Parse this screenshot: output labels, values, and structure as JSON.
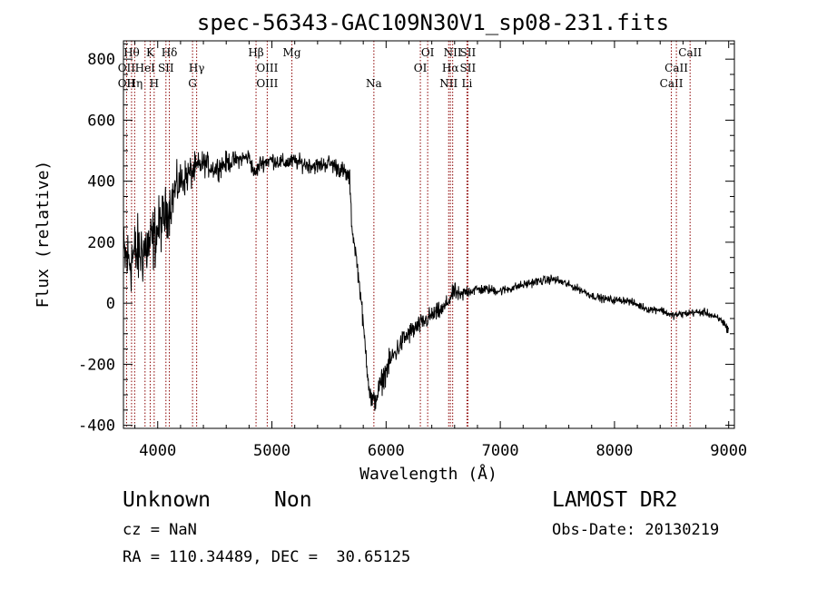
{
  "chart_data": {
    "type": "line",
    "title": "spec-56343-GAC109N30V1_sp08-231.fits",
    "xlabel": "Wavelength (Å)",
    "ylabel": "Flux (relative)",
    "xlim": [
      3700,
      9050
    ],
    "ylim": [
      -410,
      860
    ],
    "xticks": [
      4000,
      5000,
      6000,
      7000,
      8000,
      9000
    ],
    "yticks": [
      -400,
      -200,
      0,
      200,
      400,
      600,
      800
    ],
    "grid": false,
    "series": [
      {
        "x": [
          3700,
          3750,
          3800,
          3850,
          3900,
          3950,
          4000,
          4050,
          4100,
          4150,
          4200,
          4300,
          4400,
          4500,
          4600,
          4700,
          4800,
          4850,
          4900,
          5000,
          5100,
          5200,
          5300,
          5400,
          5500,
          5600,
          5680,
          5700,
          5720,
          5740,
          5760,
          5780,
          5800,
          5820,
          5840,
          5860,
          5880,
          5900,
          5950,
          6000,
          6050,
          6100,
          6150,
          6200,
          6300,
          6400,
          6500,
          6550,
          6600,
          6650,
          6700,
          6800,
          6900,
          7000,
          7100,
          7200,
          7300,
          7400,
          7450,
          7500,
          7600,
          7700,
          7800,
          7900,
          8000,
          8100,
          8200,
          8300,
          8400,
          8500,
          8600,
          8700,
          8800,
          8900,
          8950,
          9000
        ],
        "values": [
          150,
          140,
          160,
          170,
          180,
          200,
          240,
          280,
          310,
          370,
          400,
          430,
          460,
          440,
          460,
          470,
          480,
          420,
          460,
          470,
          460,
          465,
          455,
          450,
          460,
          440,
          410,
          250,
          200,
          150,
          80,
          20,
          -80,
          -150,
          -230,
          -300,
          -330,
          -320,
          -270,
          -220,
          -180,
          -150,
          -120,
          -100,
          -70,
          -40,
          -20,
          10,
          40,
          20,
          40,
          45,
          45,
          40,
          50,
          60,
          70,
          75,
          80,
          75,
          60,
          45,
          25,
          15,
          10,
          10,
          -5,
          -20,
          -20,
          -40,
          -35,
          -30,
          -30,
          -50,
          -60,
          -90
        ],
        "noise": [
          130,
          130,
          130,
          130,
          130,
          120,
          110,
          100,
          90,
          80,
          70,
          60,
          45,
          40,
          40,
          30,
          30,
          30,
          30,
          30,
          30,
          30,
          30,
          30,
          30,
          35,
          35,
          30,
          30,
          30,
          30,
          30,
          40,
          40,
          45,
          45,
          45,
          45,
          45,
          45,
          45,
          40,
          40,
          40,
          35,
          35,
          30,
          30,
          30,
          30,
          25,
          20,
          18,
          18,
          16,
          16,
          16,
          16,
          16,
          16,
          14,
          14,
          14,
          14,
          14,
          14,
          14,
          14,
          14,
          14,
          14,
          14,
          14,
          14,
          18,
          20
        ]
      }
    ],
    "lines": [
      {
        "wave": 3727,
        "label": "OII",
        "row": 2
      },
      {
        "wave": 3727,
        "label": "OII",
        "row": 3
      },
      {
        "wave": 3771,
        "label": "Hθ",
        "row": 1
      },
      {
        "wave": 3798,
        "label": "Hη",
        "row": 3
      },
      {
        "wave": 3889,
        "label": "HeI",
        "row": 2
      },
      {
        "wave": 3934,
        "label": "K",
        "row": 1
      },
      {
        "wave": 3969,
        "label": "H",
        "row": 3
      },
      {
        "wave": 4072,
        "label": "SII",
        "row": 2
      },
      {
        "wave": 4102,
        "label": "Hδ",
        "row": 1
      },
      {
        "wave": 4305,
        "label": "G",
        "row": 3
      },
      {
        "wave": 4341,
        "label": "Hγ",
        "row": 2
      },
      {
        "wave": 4861,
        "label": "Hβ",
        "row": 1
      },
      {
        "wave": 4959,
        "label": "OIII",
        "row": 2
      },
      {
        "wave": 4959,
        "label": "OIII",
        "row": 3
      },
      {
        "wave": 5175,
        "label": "Mg",
        "row": 1
      },
      {
        "wave": 5893,
        "label": "Na",
        "row": 3
      },
      {
        "wave": 6300,
        "label": "OI",
        "row": 2
      },
      {
        "wave": 6364,
        "label": "OI",
        "row": 1
      },
      {
        "wave": 6548,
        "label": "NII",
        "row": 3
      },
      {
        "wave": 6563,
        "label": "Hα",
        "row": 2
      },
      {
        "wave": 6583,
        "label": "NII",
        "row": 1
      },
      {
        "wave": 6716,
        "label": "SII",
        "row": 2
      },
      {
        "wave": 6716,
        "label": "SII",
        "row": 1
      },
      {
        "wave": 6708,
        "label": "Li",
        "row": 3
      },
      {
        "wave": 8498,
        "label": "CaII",
        "row": 3
      },
      {
        "wave": 8542,
        "label": "CaII",
        "row": 2
      },
      {
        "wave": 8662,
        "label": "CaII",
        "row": 1
      }
    ],
    "line_color": "#8b0000",
    "spectrum_color": "#000000"
  },
  "info": {
    "class": "Unknown",
    "subclass": "Non",
    "survey": "LAMOST DR2",
    "redshift": "cz = NaN",
    "obs_date": "Obs-Date: 20130219",
    "coords": "RA = 110.34489, DEC =  30.65125"
  }
}
